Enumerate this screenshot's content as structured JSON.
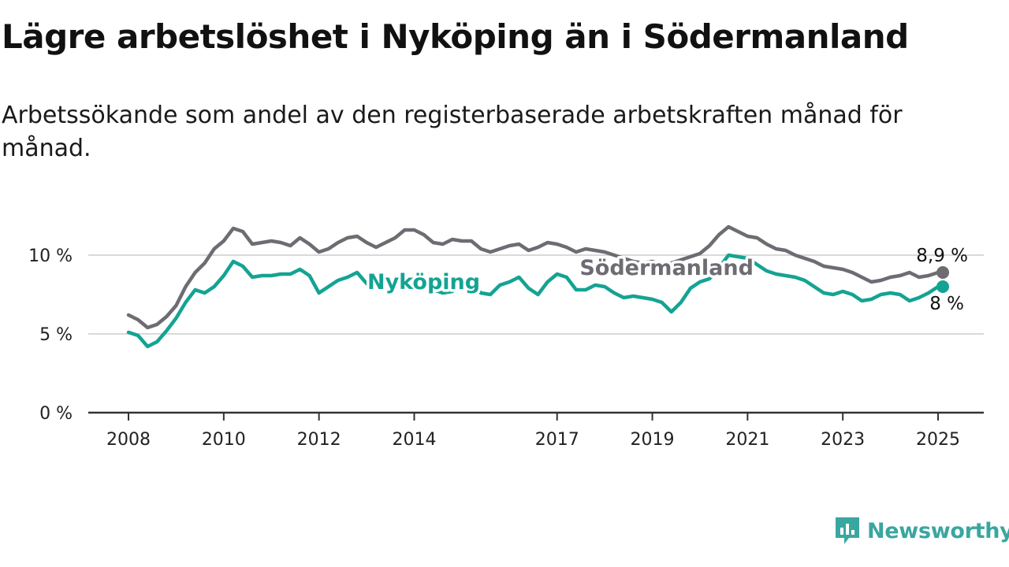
{
  "title": "Lägre arbetslöshet i Nyköping än i Södermanland",
  "subtitle": "Arbetssökande som andel av den registerbaserade arbetskraften månad för månad.",
  "brand": {
    "name": "Newsworthy",
    "logo_icon": "newsworthy-logo-icon",
    "color": "#3aa6a0"
  },
  "chart_data": {
    "type": "line",
    "xlabel": "",
    "ylabel": "",
    "ylim": [
      0,
      12
    ],
    "xlim": [
      2008,
      2025.2
    ],
    "grid": true,
    "y_ticks": [
      {
        "value": 0,
        "label": "0 %"
      },
      {
        "value": 5,
        "label": "5 %"
      },
      {
        "value": 10,
        "label": "10 %"
      }
    ],
    "x_ticks": [
      {
        "value": 2008,
        "label": "2008"
      },
      {
        "value": 2010,
        "label": "2010"
      },
      {
        "value": 2012,
        "label": "2012"
      },
      {
        "value": 2014,
        "label": "2014"
      },
      {
        "value": 2017,
        "label": "2017"
      },
      {
        "value": 2019,
        "label": "2019"
      },
      {
        "value": 2021,
        "label": "2021"
      },
      {
        "value": 2023,
        "label": "2023"
      },
      {
        "value": 2025,
        "label": "2025"
      }
    ],
    "series": [
      {
        "name": "Södermanland",
        "color": "#6e6c72",
        "end_label": "8,9 %",
        "points": [
          [
            2008.0,
            6.2
          ],
          [
            2008.2,
            5.9
          ],
          [
            2008.4,
            5.4
          ],
          [
            2008.6,
            5.6
          ],
          [
            2008.8,
            6.1
          ],
          [
            2009.0,
            6.8
          ],
          [
            2009.2,
            8.0
          ],
          [
            2009.4,
            8.9
          ],
          [
            2009.6,
            9.5
          ],
          [
            2009.8,
            10.4
          ],
          [
            2010.0,
            10.9
          ],
          [
            2010.2,
            11.7
          ],
          [
            2010.4,
            11.5
          ],
          [
            2010.6,
            10.7
          ],
          [
            2010.8,
            10.8
          ],
          [
            2011.0,
            10.9
          ],
          [
            2011.2,
            10.8
          ],
          [
            2011.4,
            10.6
          ],
          [
            2011.6,
            11.1
          ],
          [
            2011.8,
            10.7
          ],
          [
            2012.0,
            10.2
          ],
          [
            2012.2,
            10.4
          ],
          [
            2012.4,
            10.8
          ],
          [
            2012.6,
            11.1
          ],
          [
            2012.8,
            11.2
          ],
          [
            2013.0,
            10.8
          ],
          [
            2013.2,
            10.5
          ],
          [
            2013.4,
            10.8
          ],
          [
            2013.6,
            11.1
          ],
          [
            2013.8,
            11.6
          ],
          [
            2014.0,
            11.6
          ],
          [
            2014.2,
            11.3
          ],
          [
            2014.4,
            10.8
          ],
          [
            2014.6,
            10.7
          ],
          [
            2014.8,
            11.0
          ],
          [
            2015.0,
            10.9
          ],
          [
            2015.2,
            10.9
          ],
          [
            2015.4,
            10.4
          ],
          [
            2015.6,
            10.2
          ],
          [
            2015.8,
            10.4
          ],
          [
            2016.0,
            10.6
          ],
          [
            2016.2,
            10.7
          ],
          [
            2016.4,
            10.3
          ],
          [
            2016.6,
            10.5
          ],
          [
            2016.8,
            10.8
          ],
          [
            2017.0,
            10.7
          ],
          [
            2017.2,
            10.5
          ],
          [
            2017.4,
            10.2
          ],
          [
            2017.6,
            10.4
          ],
          [
            2017.8,
            10.3
          ],
          [
            2018.0,
            10.2
          ],
          [
            2018.2,
            10.0
          ],
          [
            2018.4,
            9.8
          ],
          [
            2018.6,
            9.6
          ],
          [
            2018.8,
            9.5
          ],
          [
            2019.0,
            9.6
          ],
          [
            2019.2,
            9.4
          ],
          [
            2019.4,
            9.5
          ],
          [
            2019.6,
            9.7
          ],
          [
            2019.8,
            9.9
          ],
          [
            2020.0,
            10.1
          ],
          [
            2020.2,
            10.6
          ],
          [
            2020.4,
            11.3
          ],
          [
            2020.6,
            11.8
          ],
          [
            2020.8,
            11.5
          ],
          [
            2021.0,
            11.2
          ],
          [
            2021.2,
            11.1
          ],
          [
            2021.4,
            10.7
          ],
          [
            2021.6,
            10.4
          ],
          [
            2021.8,
            10.3
          ],
          [
            2022.0,
            10.0
          ],
          [
            2022.2,
            9.8
          ],
          [
            2022.4,
            9.6
          ],
          [
            2022.6,
            9.3
          ],
          [
            2022.8,
            9.2
          ],
          [
            2023.0,
            9.1
          ],
          [
            2023.2,
            8.9
          ],
          [
            2023.4,
            8.6
          ],
          [
            2023.6,
            8.3
          ],
          [
            2023.8,
            8.4
          ],
          [
            2024.0,
            8.6
          ],
          [
            2024.2,
            8.7
          ],
          [
            2024.4,
            8.9
          ],
          [
            2024.6,
            8.6
          ],
          [
            2024.8,
            8.7
          ],
          [
            2025.0,
            8.9
          ],
          [
            2025.1,
            8.9
          ]
        ]
      },
      {
        "name": "Nyköping",
        "color": "#14a393",
        "end_label": "8 %",
        "points": [
          [
            2008.0,
            5.1
          ],
          [
            2008.2,
            4.9
          ],
          [
            2008.4,
            4.2
          ],
          [
            2008.6,
            4.5
          ],
          [
            2008.8,
            5.2
          ],
          [
            2009.0,
            6.0
          ],
          [
            2009.2,
            7.0
          ],
          [
            2009.4,
            7.8
          ],
          [
            2009.6,
            7.6
          ],
          [
            2009.8,
            8.0
          ],
          [
            2010.0,
            8.7
          ],
          [
            2010.2,
            9.6
          ],
          [
            2010.4,
            9.3
          ],
          [
            2010.6,
            8.6
          ],
          [
            2010.8,
            8.7
          ],
          [
            2011.0,
            8.7
          ],
          [
            2011.2,
            8.8
          ],
          [
            2011.4,
            8.8
          ],
          [
            2011.6,
            9.1
          ],
          [
            2011.8,
            8.7
          ],
          [
            2012.0,
            7.6
          ],
          [
            2012.2,
            8.0
          ],
          [
            2012.4,
            8.4
          ],
          [
            2012.6,
            8.6
          ],
          [
            2012.8,
            8.9
          ],
          [
            2013.0,
            8.2
          ],
          [
            2013.2,
            8.1
          ],
          [
            2013.4,
            8.3
          ],
          [
            2013.6,
            8.2
          ],
          [
            2013.8,
            8.6
          ],
          [
            2014.0,
            8.4
          ],
          [
            2014.2,
            8.0
          ],
          [
            2014.4,
            7.8
          ],
          [
            2014.6,
            7.6
          ],
          [
            2014.8,
            7.7
          ],
          [
            2015.0,
            8.2
          ],
          [
            2015.2,
            8.4
          ],
          [
            2015.4,
            7.6
          ],
          [
            2015.6,
            7.5
          ],
          [
            2015.8,
            8.1
          ],
          [
            2016.0,
            8.3
          ],
          [
            2016.2,
            8.6
          ],
          [
            2016.4,
            7.9
          ],
          [
            2016.6,
            7.5
          ],
          [
            2016.8,
            8.3
          ],
          [
            2017.0,
            8.8
          ],
          [
            2017.2,
            8.6
          ],
          [
            2017.4,
            7.8
          ],
          [
            2017.6,
            7.8
          ],
          [
            2017.8,
            8.1
          ],
          [
            2018.0,
            8.0
          ],
          [
            2018.2,
            7.6
          ],
          [
            2018.4,
            7.3
          ],
          [
            2018.6,
            7.4
          ],
          [
            2018.8,
            7.3
          ],
          [
            2019.0,
            7.2
          ],
          [
            2019.2,
            7.0
          ],
          [
            2019.4,
            6.4
          ],
          [
            2019.6,
            7.0
          ],
          [
            2019.8,
            7.9
          ],
          [
            2020.0,
            8.3
          ],
          [
            2020.2,
            8.5
          ],
          [
            2020.4,
            9.2
          ],
          [
            2020.6,
            10.0
          ],
          [
            2020.8,
            9.9
          ],
          [
            2021.0,
            9.8
          ],
          [
            2021.2,
            9.4
          ],
          [
            2021.4,
            9.0
          ],
          [
            2021.6,
            8.8
          ],
          [
            2021.8,
            8.7
          ],
          [
            2022.0,
            8.6
          ],
          [
            2022.2,
            8.4
          ],
          [
            2022.4,
            8.0
          ],
          [
            2022.6,
            7.6
          ],
          [
            2022.8,
            7.5
          ],
          [
            2023.0,
            7.7
          ],
          [
            2023.2,
            7.5
          ],
          [
            2023.4,
            7.1
          ],
          [
            2023.6,
            7.2
          ],
          [
            2023.8,
            7.5
          ],
          [
            2024.0,
            7.6
          ],
          [
            2024.2,
            7.5
          ],
          [
            2024.4,
            7.1
          ],
          [
            2024.6,
            7.3
          ],
          [
            2024.8,
            7.6
          ],
          [
            2025.0,
            8.0
          ],
          [
            2025.1,
            8.0
          ]
        ]
      }
    ],
    "inline_labels": [
      {
        "series": "Nyköping",
        "text": "Nyköping",
        "anchor_x": 2014.2,
        "anchor_y": 8.3
      },
      {
        "series": "Södermanland",
        "text": "Södermanland",
        "anchor_x": 2019.3,
        "anchor_y": 9.2
      }
    ]
  }
}
